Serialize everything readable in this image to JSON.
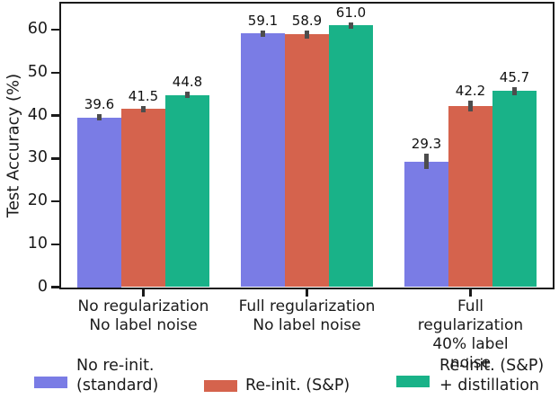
{
  "figure": {
    "background_color": "#ffffff",
    "axis_color": "#1a1a1a",
    "error_bar_color": "#4d4d4d"
  },
  "chart_data": {
    "type": "bar",
    "title": "",
    "xlabel": "",
    "ylabel": "Test Accuracy (%)",
    "ylim": [
      0,
      66
    ],
    "yticks": [
      0,
      10,
      20,
      30,
      40,
      50,
      60
    ],
    "grid": false,
    "legend_position": "below",
    "categories": [
      [
        "No regularization",
        "No label noise"
      ],
      [
        "Full regularization",
        "No label noise"
      ],
      [
        "Full regularization",
        "40% label noise"
      ]
    ],
    "series": [
      {
        "name": "No re-init. (standard)",
        "name_lines": [
          "No re-init.",
          "(standard)"
        ],
        "color": "#7a7ce5",
        "values": [
          39.6,
          59.1,
          29.3
        ],
        "errors": [
          0.8,
          0.8,
          1.8
        ]
      },
      {
        "name": "Re-init. (S&P)",
        "name_lines": [
          "Re-init. (S&P)"
        ],
        "color": "#d5634d",
        "values": [
          41.5,
          58.9,
          42.2
        ],
        "errors": [
          0.8,
          1.0,
          1.3
        ]
      },
      {
        "name": "Re-init. (S&P) + distillation",
        "name_lines": [
          "Re-init. (S&P)",
          "+ distillation"
        ],
        "color": "#19b288",
        "values": [
          44.8,
          61.0,
          45.7
        ],
        "errors": [
          0.8,
          0.8,
          1.0
        ]
      }
    ],
    "value_labels": {
      "group_0": [
        "39.6",
        "41.5",
        "44.8"
      ],
      "group_1": [
        "59.1",
        "58.9",
        "61.0"
      ],
      "group_2": [
        "29.3",
        "42.2",
        "45.7"
      ]
    }
  }
}
